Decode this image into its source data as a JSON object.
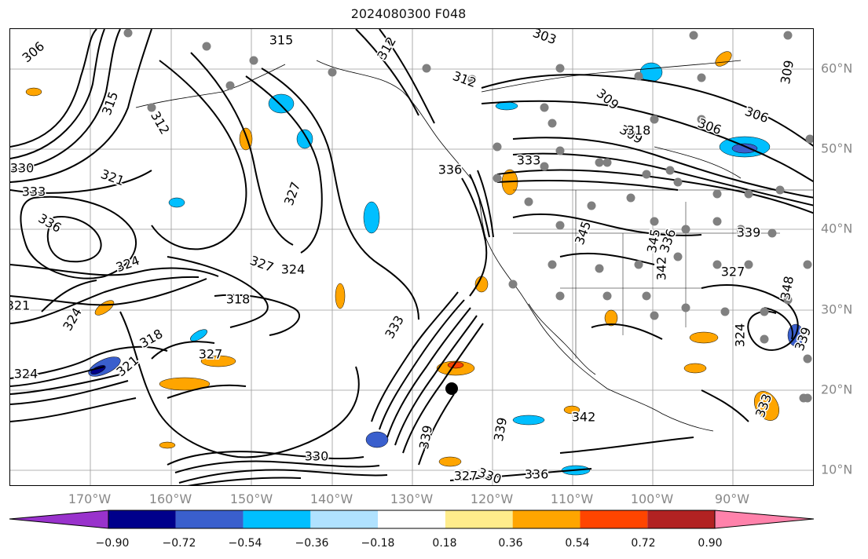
{
  "title": "2024080300 F048",
  "lon_labels": [
    "170°W",
    "160°W",
    "150°W",
    "140°W",
    "130°W",
    "120°W",
    "110°W",
    "100°W",
    "90°W"
  ],
  "lat_labels": [
    "60°N",
    "50°N",
    "40°N",
    "30°N",
    "20°N",
    "10°N"
  ],
  "colorbar": {
    "ticks": [
      "−0.90",
      "−0.72",
      "−0.54",
      "−0.36",
      "−0.18",
      "0.18",
      "0.36",
      "0.54",
      "0.72",
      "0.90"
    ],
    "colors": [
      "#9932cc",
      "#00008b",
      "#3a5fcd",
      "#00bfff",
      "#b0e2ff",
      "#ffffff",
      "#ffec8b",
      "#ffa500",
      "#ff4500",
      "#b22222",
      "#ff82ab"
    ]
  },
  "contour_labels": [
    "306",
    "315",
    "303",
    "312",
    "309",
    "306",
    "309",
    "315",
    "312",
    "312",
    "309",
    "318",
    "321",
    "306",
    "330",
    "333",
    "336",
    "324",
    "327",
    "327",
    "324",
    "318",
    "321",
    "324",
    "327",
    "318",
    "321",
    "324",
    "333",
    "342",
    "339",
    "336",
    "327",
    "330",
    "336",
    "339",
    "330",
    "345",
    "345",
    "339",
    "342",
    "333",
    "324",
    "327",
    "348",
    "339",
    "336",
    "333"
  ],
  "colors": {
    "contour": "#000000",
    "grid": "#808080",
    "axis_text": "#808080"
  }
}
